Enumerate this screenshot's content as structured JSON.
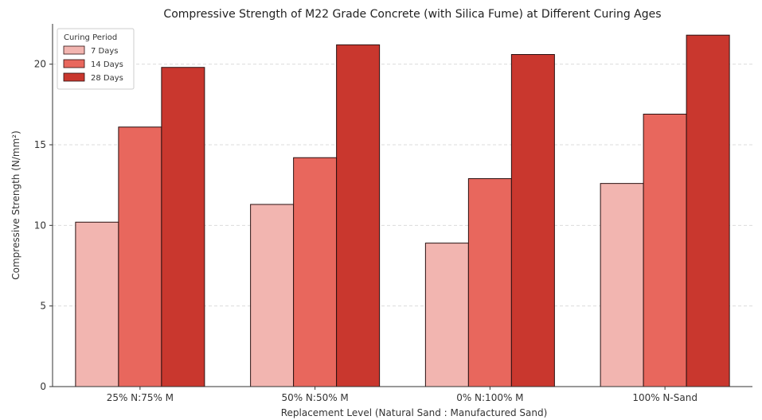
{
  "chart_data": {
    "type": "bar",
    "title": "Compressive Strength of M22 Grade Concrete (with Silica Fume) at Different Curing Ages",
    "xlabel": "Replacement Level (Natural Sand : Manufactured Sand)",
    "ylabel": "Compressive Strength (N/mm²)",
    "ylim": [
      0,
      22.5
    ],
    "yticks": [
      "0",
      "5",
      "10",
      "15",
      "20"
    ],
    "grid": true,
    "legend": {
      "title": "Curing Period",
      "position": "top-left"
    },
    "categories": [
      "25% N:75% M",
      "50% N:50% M",
      "0% N:100% M",
      "100% N-Sand"
    ],
    "series": [
      {
        "name": "7 Days",
        "color": "#f2b5b0",
        "values": [
          10.2,
          11.3,
          8.9,
          12.6
        ]
      },
      {
        "name": "14 Days",
        "color": "#e8675d",
        "values": [
          16.1,
          14.2,
          12.9,
          16.9
        ]
      },
      {
        "name": "28 Days",
        "color": "#c9372e",
        "values": [
          19.8,
          21.2,
          20.6,
          21.8
        ]
      }
    ]
  }
}
